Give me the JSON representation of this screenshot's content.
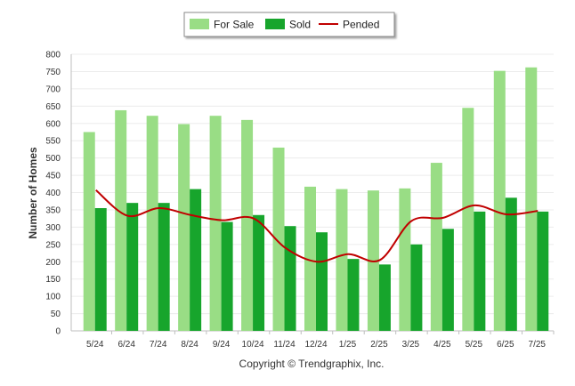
{
  "chart_data": {
    "type": "bar",
    "categories": [
      "5/24",
      "6/24",
      "7/24",
      "8/24",
      "9/24",
      "10/24",
      "11/24",
      "12/24",
      "1/25",
      "2/25",
      "3/25",
      "4/25",
      "5/25",
      "6/25",
      "7/25"
    ],
    "series": [
      {
        "name": "For Sale",
        "kind": "bar",
        "color": "#99dd85",
        "values": [
          575,
          638,
          622,
          598,
          622,
          610,
          530,
          417,
          410,
          406,
          412,
          486,
          645,
          752,
          762
        ]
      },
      {
        "name": "Sold",
        "kind": "bar",
        "color": "#17a52c",
        "values": [
          355,
          370,
          370,
          410,
          315,
          335,
          303,
          285,
          208,
          192,
          250,
          295,
          345,
          385,
          345
        ]
      },
      {
        "name": "Pended",
        "kind": "line",
        "color": "#c00000",
        "values": [
          407,
          333,
          355,
          335,
          320,
          325,
          240,
          200,
          222,
          205,
          318,
          327,
          363,
          337,
          347
        ]
      }
    ],
    "ylabel": "Number of Homes",
    "xlabel": "",
    "ylim": [
      0,
      800
    ],
    "yticks": [
      0,
      50,
      100,
      150,
      200,
      250,
      300,
      350,
      400,
      450,
      500,
      550,
      600,
      650,
      700,
      750,
      800
    ],
    "legend_position": "top-center",
    "grid": true
  },
  "footer": "Copyright © Trendgraphix, Inc."
}
